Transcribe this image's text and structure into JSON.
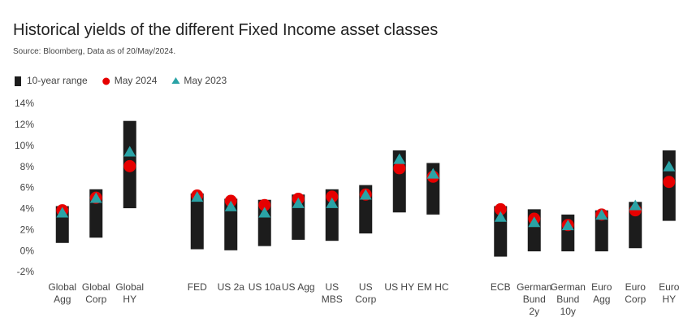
{
  "chart_data": {
    "type": "range",
    "title": "Historical yields of the different Fixed Income asset classes",
    "subtitle": "Source: Bloomberg, Data as of 20/May/2024.",
    "categories": [
      "Global\nAgg",
      "Global\nCorp",
      "Global\nHY",
      null,
      "FED",
      "US 2a",
      "US 10a",
      "US Agg",
      "US MBS",
      "US Corp",
      "US HY",
      "EM HC",
      null,
      "ECB",
      "German\nBund\n2y",
      "German\nBund\n10y",
      "Euro\nAgg",
      "Euro\nCorp",
      "Euro HY"
    ],
    "series": [
      {
        "name": "10-year range",
        "color": "#1c1c1c",
        "marker": "bar",
        "low": [
          0.8,
          1.3,
          4.1,
          null,
          0.2,
          0.1,
          0.5,
          1.1,
          1.0,
          1.7,
          3.7,
          3.5,
          null,
          -0.5,
          0.0,
          0.0,
          0.0,
          0.3,
          2.9
        ],
        "high": [
          4.3,
          5.9,
          12.4,
          null,
          5.5,
          5.0,
          4.9,
          5.4,
          5.9,
          6.3,
          9.6,
          8.4,
          null,
          4.3,
          4.0,
          3.5,
          3.9,
          4.7,
          9.6
        ]
      },
      {
        "name": "May 2024",
        "color": "#e60000",
        "marker": "circle",
        "values": [
          3.9,
          5.1,
          8.1,
          null,
          5.3,
          4.8,
          4.4,
          5.0,
          5.2,
          5.4,
          7.9,
          7.1,
          null,
          4.0,
          3.1,
          2.5,
          3.5,
          3.9,
          6.6
        ]
      },
      {
        "name": "May 2023",
        "color": "#2aa3a6",
        "marker": "triangle",
        "values": [
          3.6,
          5.0,
          9.4,
          null,
          5.1,
          4.2,
          3.6,
          4.5,
          4.5,
          5.3,
          8.7,
          7.3,
          null,
          3.2,
          2.7,
          2.4,
          3.4,
          4.3,
          8.0
        ]
      }
    ],
    "ylim": [
      -2,
      14
    ],
    "yticks": [
      {
        "value": -2,
        "label": "-2%"
      },
      {
        "value": 0,
        "label": "0%"
      },
      {
        "value": 2,
        "label": "2%"
      },
      {
        "value": 4,
        "label": "4%"
      },
      {
        "value": 6,
        "label": "6%"
      },
      {
        "value": 8,
        "label": "8%"
      },
      {
        "value": 10,
        "label": "10%"
      },
      {
        "value": 12,
        "label": "12%"
      },
      {
        "value": 14,
        "label": "14%"
      }
    ],
    "grid": false,
    "legend": "top-left"
  }
}
